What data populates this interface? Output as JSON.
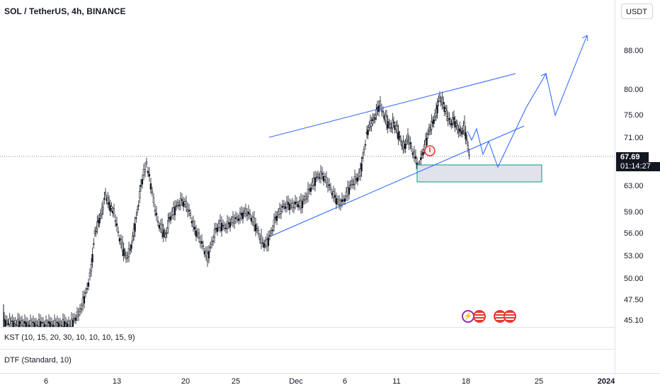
{
  "header": {
    "title": "SOL / TetherUS, 4h, BINANCE",
    "currency": "USDT"
  },
  "price_axis": {
    "ticks": [
      "88.00",
      "80.00",
      "75.00",
      "71.00",
      "63.00",
      "59.00",
      "56.00",
      "53.00",
      "50.00",
      "47.50",
      "45.10"
    ],
    "last_price": "67.69",
    "countdown": "01:14:27"
  },
  "indicators": {
    "kst": "KST (10, 15, 20, 30, 10, 10, 10, 15, 9)",
    "dtf": "DTF (Standard, 10)"
  },
  "time_axis": {
    "labels": [
      "6",
      "13",
      "20",
      "25",
      "Dec",
      "6",
      "11",
      "18",
      "25",
      "2024"
    ]
  },
  "colors": {
    "up": "#131722",
    "down": "#131722",
    "trendline": "#2962ff",
    "zone_border": "#089981",
    "zone_fill": "#e0e3eb",
    "marker": "#e53935"
  },
  "events": [
    "flash-icon",
    "flag-icon",
    "flag-icon",
    "flag-icon"
  ]
}
